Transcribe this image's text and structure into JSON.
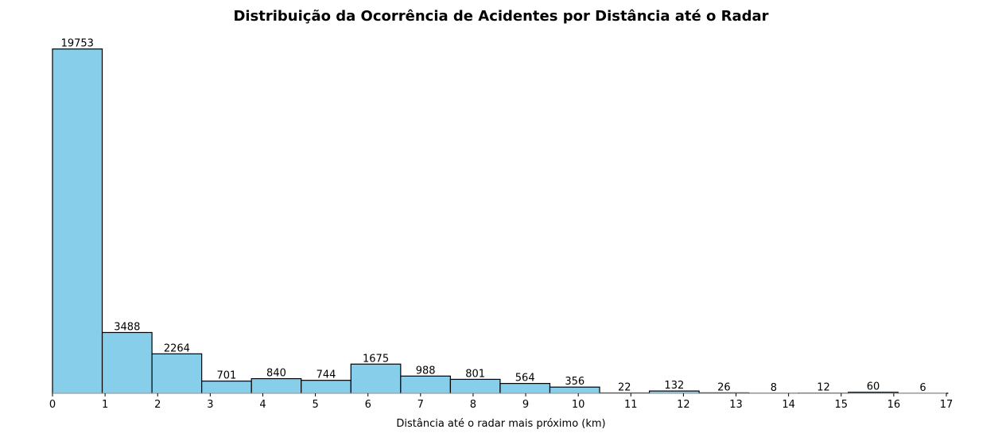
{
  "chart_data": {
    "type": "bar",
    "title": "Distribuição da Ocorrência de Acidentes por Distância até o Radar",
    "xlabel": "Distância até o radar mais próximo (km)",
    "ylabel": "",
    "xlim": [
      0,
      17
    ],
    "ylim": [
      0,
      20740
    ],
    "x_ticks": [
      "0",
      "1",
      "2",
      "3",
      "4",
      "5",
      "6",
      "7",
      "8",
      "9",
      "10",
      "11",
      "12",
      "13",
      "14",
      "15",
      "16",
      "17"
    ],
    "bin_edges": [
      0,
      0.946,
      1.892,
      2.838,
      3.784,
      4.73,
      5.676,
      6.622,
      7.568,
      8.514,
      9.46,
      10.406,
      11.352,
      12.298,
      13.244,
      14.19,
      15.136,
      16.082,
      17.028
    ],
    "values": [
      19753,
      3488,
      2264,
      701,
      840,
      744,
      1675,
      988,
      801,
      564,
      356,
      22,
      132,
      26,
      8,
      12,
      60,
      6
    ],
    "bar_color": "#87ceeb",
    "edge_color": "#000000",
    "grid": false
  }
}
